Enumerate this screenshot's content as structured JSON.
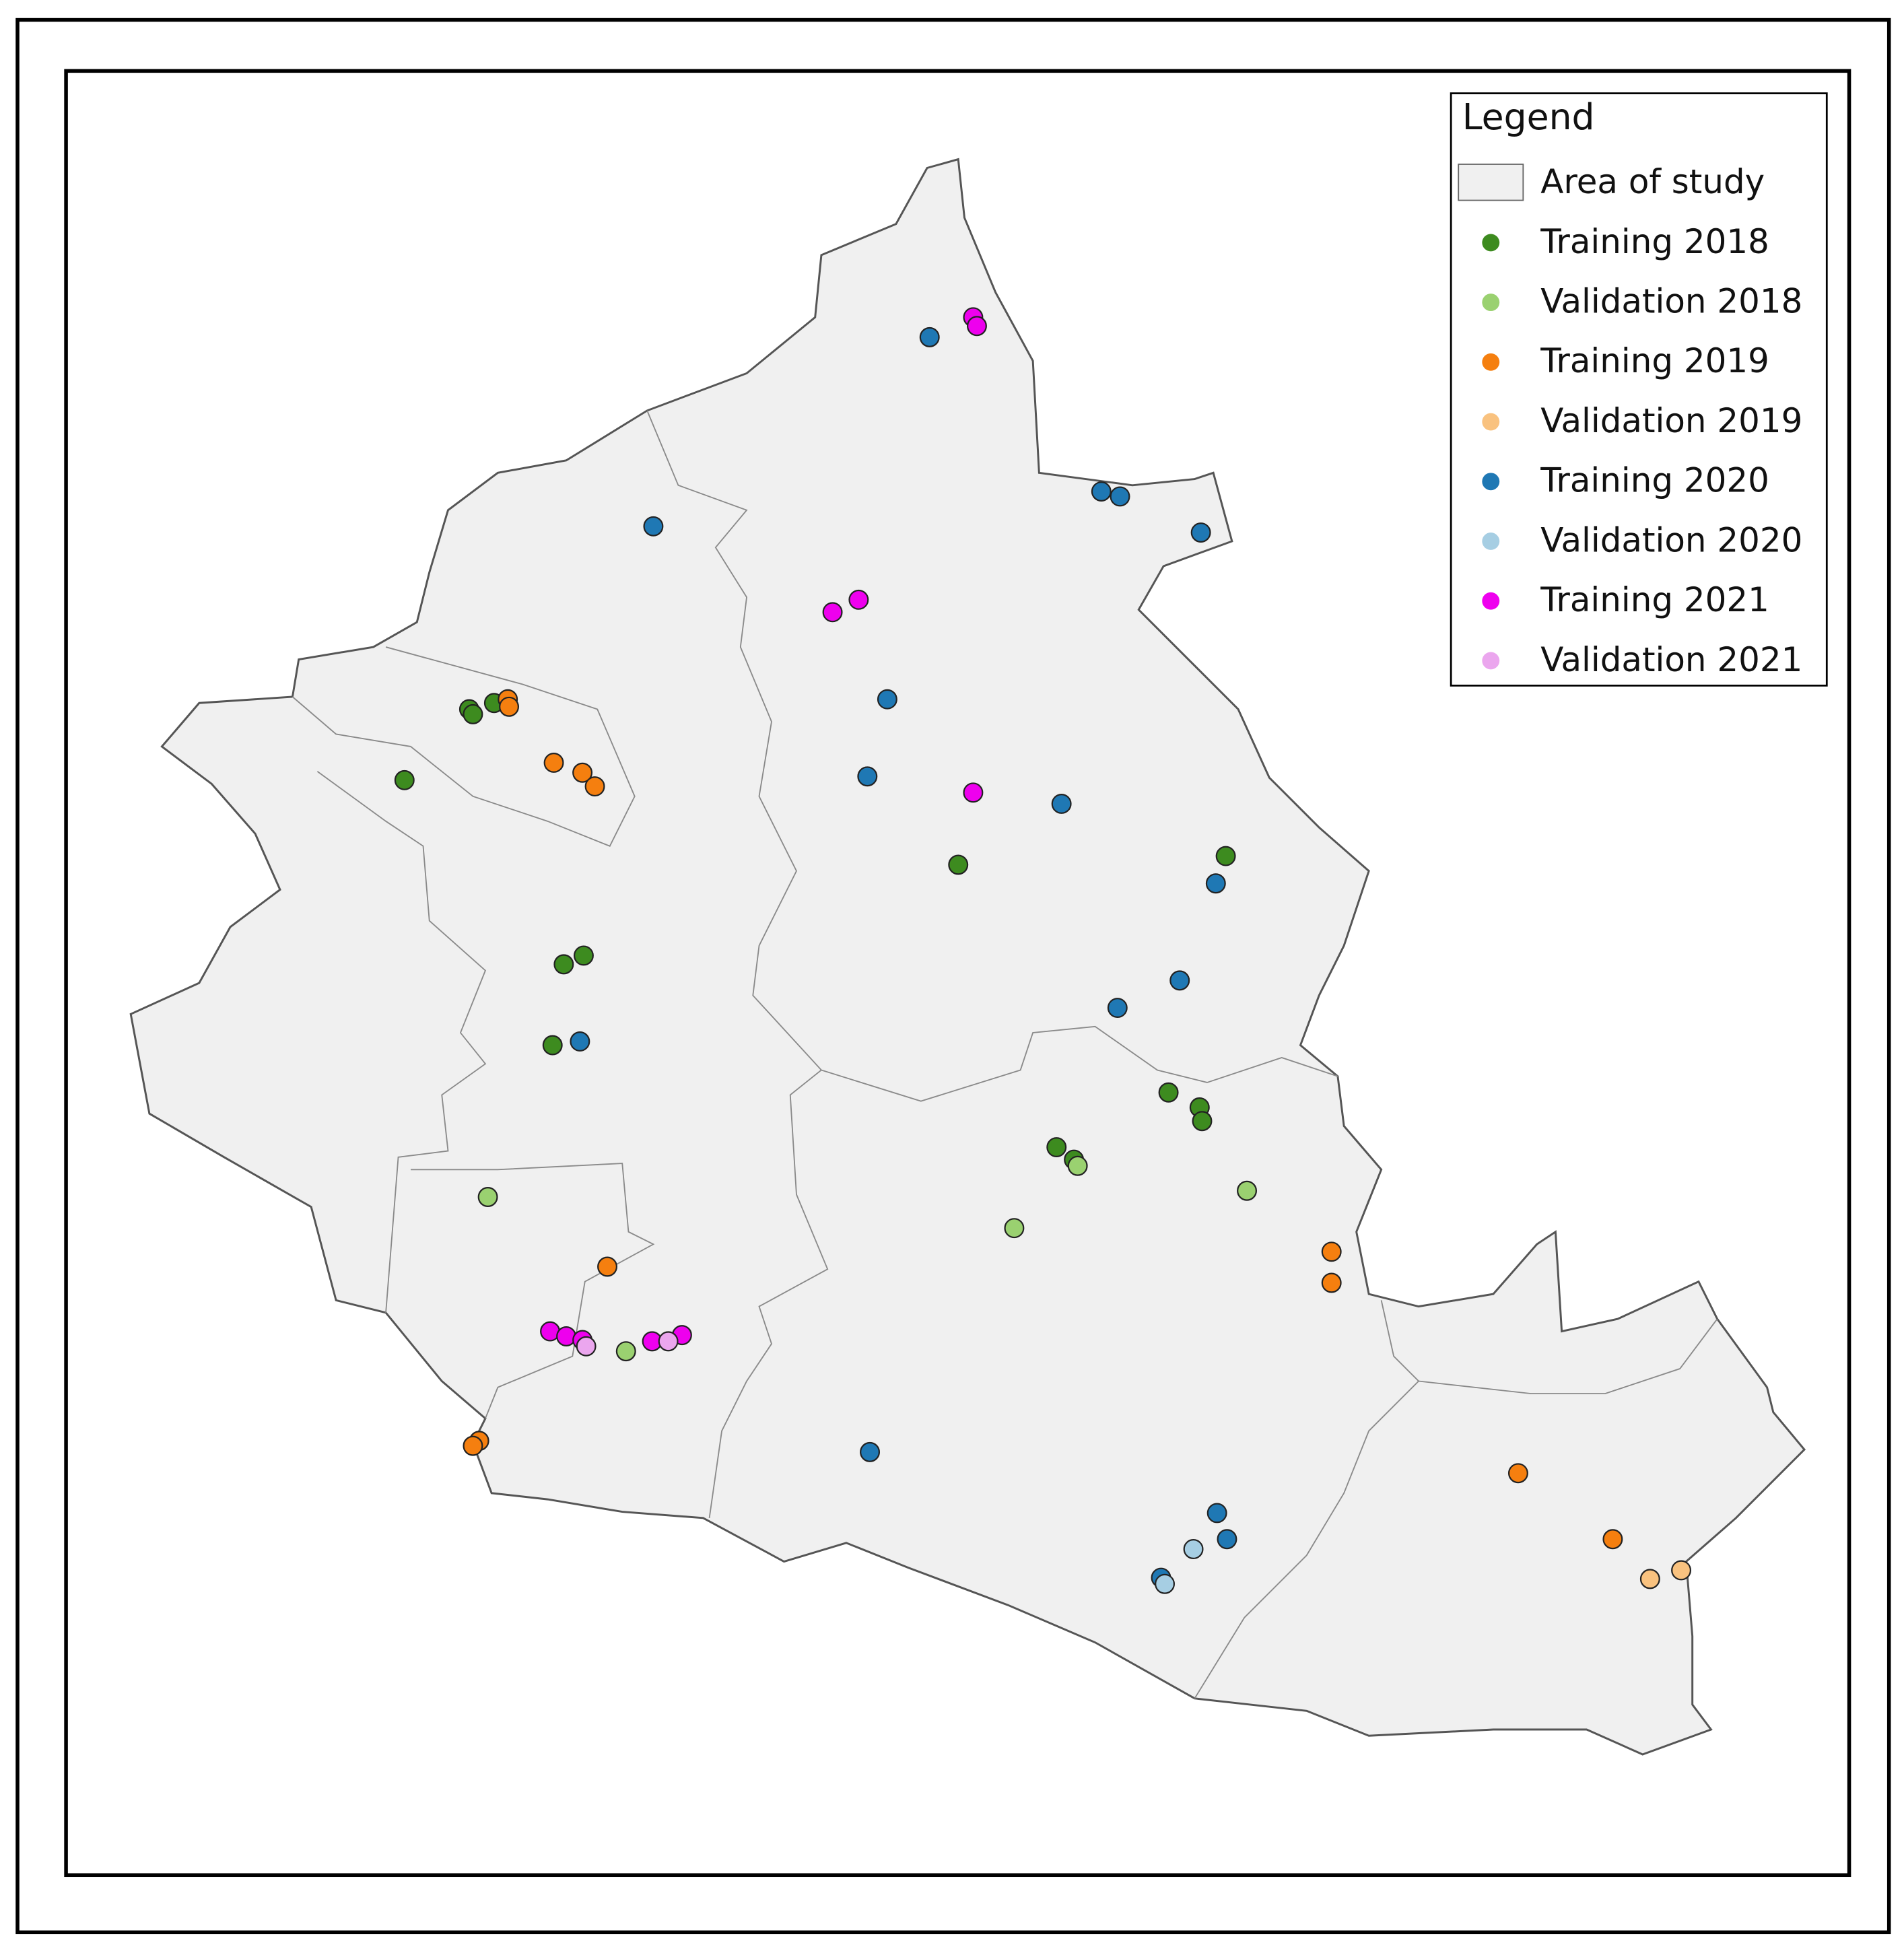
{
  "legend": {
    "title": "Legend",
    "items": [
      {
        "label": "Area of study",
        "color": "#f0f0f0"
      },
      {
        "label": "Training 2018",
        "color": "#3d8b1f"
      },
      {
        "label": "Validation 2018",
        "color": "#9ad170"
      },
      {
        "label": "Training 2019",
        "color": "#f57f0f"
      },
      {
        "label": "Validation 2019",
        "color": "#f9c27f"
      },
      {
        "label": "Training 2020",
        "color": "#1f78b4"
      },
      {
        "label": "Validation 2020",
        "color": "#a6cee3"
      },
      {
        "label": "Training 2021",
        "color": "#ee00ee"
      },
      {
        "label": "Validation 2021",
        "color": "#eba6ee"
      }
    ]
  }
}
